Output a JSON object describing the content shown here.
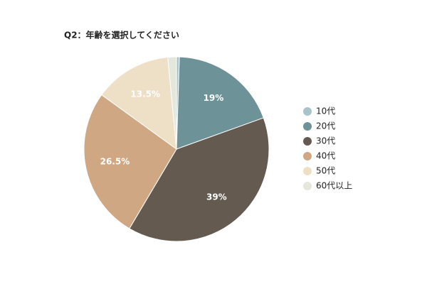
{
  "chart_data": {
    "type": "pie",
    "title": "Q2：年齢を選択してください",
    "categories": [
      "10代",
      "20代",
      "30代",
      "40代",
      "50代",
      "60代以上"
    ],
    "values": [
      0.5,
      19,
      39,
      26.5,
      13.5,
      1.5
    ],
    "value_labels": [
      null,
      "19%",
      "39%",
      "26.5%",
      "13.5%",
      null
    ],
    "colors": [
      "#a9c4c9",
      "#6d9399",
      "#655a50",
      "#cfa782",
      "#ede0c6",
      "#e3e7dc"
    ],
    "legend": "right"
  }
}
